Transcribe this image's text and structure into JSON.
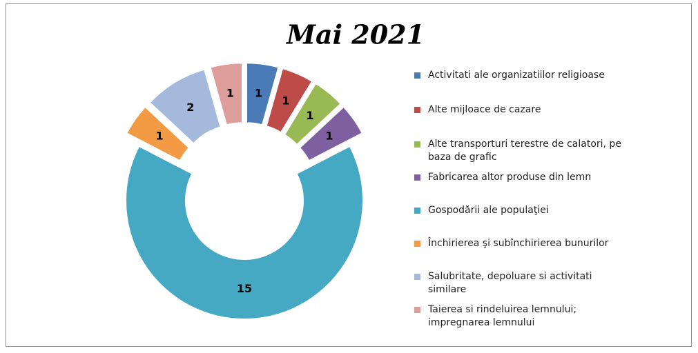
{
  "chart_data": {
    "type": "donut",
    "title": "Mai 2021",
    "categories": [
      "Activitati ale organizatiilor religioase",
      "Alte mijloace de cazare",
      "Alte transporturi terestre de calatori, pe baza de grafic",
      "Fabricarea altor produse din lemn",
      "Gospodării ale populaţiei",
      "Închirierea şi subînchirierea bunurilor",
      "Salubritate, depoluare si activitati similare",
      "Taierea si rindeluirea lemnului; impregnarea lemnului"
    ],
    "values": [
      1,
      1,
      1,
      1,
      15,
      1,
      2,
      1
    ],
    "colors": [
      "#4a7bb7",
      "#bd4b48",
      "#98b954",
      "#7e60a0",
      "#46a9c4",
      "#f29a44",
      "#a5b9dd",
      "#dc9d9b"
    ],
    "legend": "right"
  }
}
